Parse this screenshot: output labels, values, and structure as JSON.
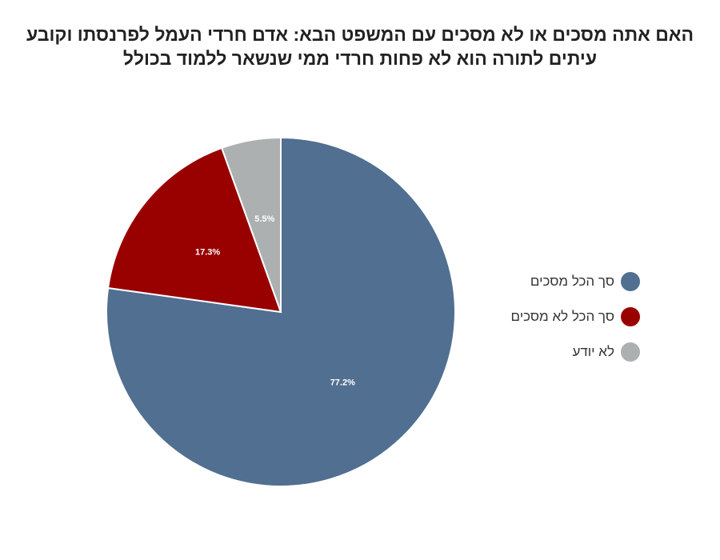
{
  "chart_data": {
    "type": "pie",
    "title": "האם אתה מסכים או לא מסכים עם המשפט הבא: אדם חרדי העמל לפרנסתו וקובע עיתים לתורה הוא לא פחות חרדי ממי שנשאר ללמוד בכולל",
    "slices": [
      {
        "label": "סך הכל מסכים",
        "value": 77.2,
        "display": "77.2%",
        "color": "#516f90"
      },
      {
        "label": "סך הכל לא מסכים",
        "value": 17.3,
        "display": "17.3%",
        "color": "#990000"
      },
      {
        "label": "לא יודע",
        "value": 5.5,
        "display": "5.5%",
        "color": "#acb0b1"
      }
    ],
    "legend_position": "right"
  }
}
